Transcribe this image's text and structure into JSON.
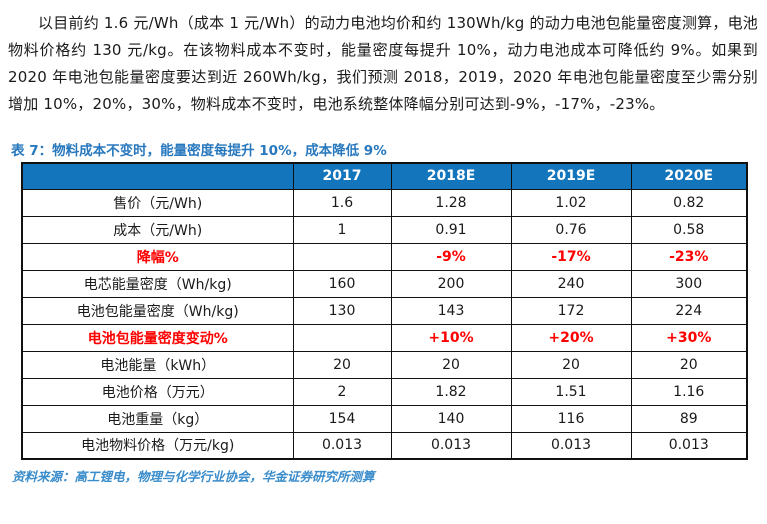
{
  "paragraph": "以目前约 1.6 元/Wh（成本 1 元/Wh）的动力电池均价和约 130Wh/kg 的动力电池包能量密度测算，电池物料价格约 130 元/kg。在该物料成本不变时，能量密度每提升 10%，动力电池成本可降低约 9%。如果到 2020 年电池包能量密度要达到近 260Wh/kg，我们预测 2018，2019，2020 年电池包能量密度至少需分别增加 10%，20%，30%，物料成本不变时，电池系统整体降幅分别可达到-9%，-17%，-23%。",
  "table": {
    "title": "表 7：物料成本不变时，能量密度每提升 10%，成本降低 9%",
    "columns": [
      "2017",
      "2018E",
      "2019E",
      "2020E"
    ],
    "rows": [
      {
        "label": "售价（元/Wh)",
        "values": [
          "1.6",
          "1.28",
          "1.02",
          "0.82"
        ],
        "red": false
      },
      {
        "label": "成本（元/Wh)",
        "values": [
          "1",
          "0.91",
          "0.76",
          "0.58"
        ],
        "red": false
      },
      {
        "label": "降幅%",
        "values": [
          "",
          "-9%",
          "-17%",
          "-23%"
        ],
        "red": true
      },
      {
        "label": "电芯能量密度（Wh/kg)",
        "values": [
          "160",
          "200",
          "240",
          "300"
        ],
        "red": false
      },
      {
        "label": "电池包能量密度（Wh/kg)",
        "values": [
          "130",
          "143",
          "172",
          "224"
        ],
        "red": false
      },
      {
        "label": "电池包能量密度变动%",
        "values": [
          "",
          "+10%",
          "+20%",
          "+30%"
        ],
        "red": true
      },
      {
        "label": "电池能量（kWh）",
        "values": [
          "20",
          "20",
          "20",
          "20"
        ],
        "red": false
      },
      {
        "label": "电池价格（万元）",
        "values": [
          "2",
          "1.82",
          "1.51",
          "1.16"
        ],
        "red": false
      },
      {
        "label": "电池重量（kg）",
        "values": [
          "154",
          "140",
          "116",
          "89"
        ],
        "red": false
      },
      {
        "label": "电池物料价格（万元/kg)",
        "values": [
          "0.013",
          "0.013",
          "0.013",
          "0.013"
        ],
        "red": false
      }
    ]
  },
  "source": "资料来源：高工锂电，物理与化学行业协会，华金证券研究所测算",
  "colors": {
    "header_bg": "#1376bd",
    "header_text": "#ffffff",
    "title_blue": "#2878be",
    "source_blue": "#3a8ccb",
    "highlight_red": "#ff0000",
    "body_text": "#1a1a1a"
  }
}
